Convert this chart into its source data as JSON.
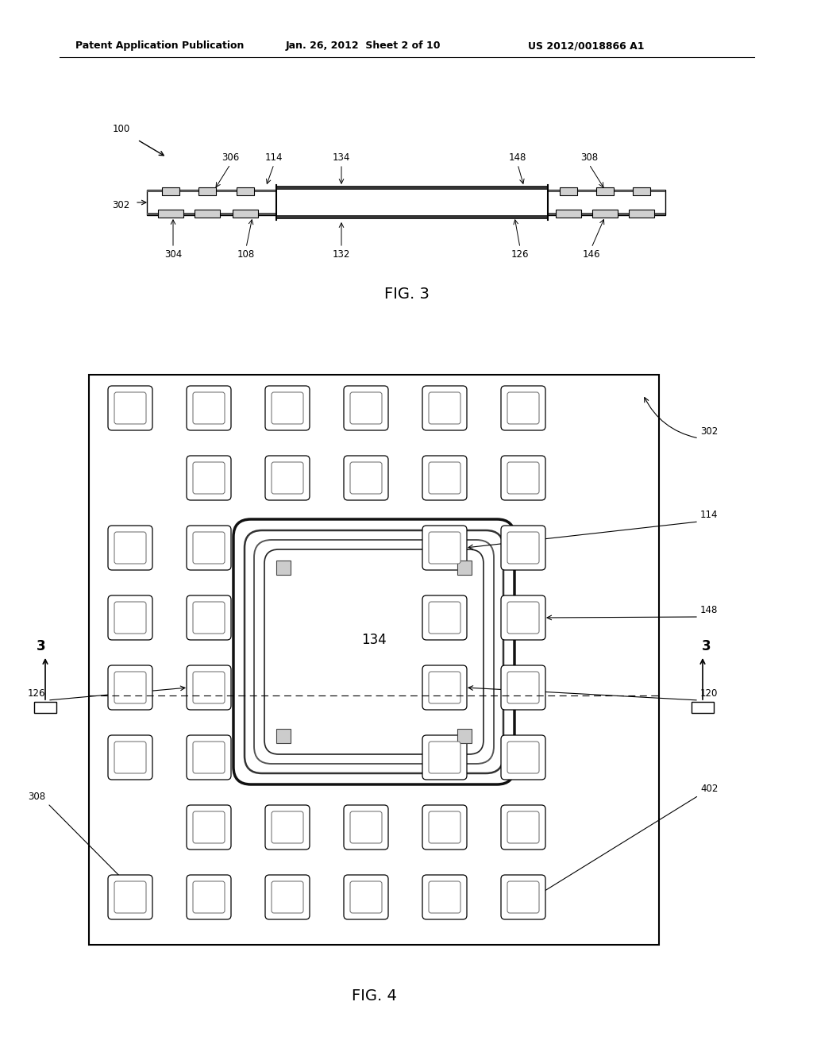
{
  "background_color": "#ffffff",
  "header_left": "Patent Application Publication",
  "header_mid": "Jan. 26, 2012  Sheet 2 of 10",
  "header_right": "US 2012/0018866 A1",
  "fig3_label": "FIG. 3",
  "fig4_label": "FIG. 4",
  "fig3_ref_100": "100",
  "fig3_ref_302": "302",
  "fig3_ref_306": "306",
  "fig3_ref_114": "114",
  "fig3_ref_134": "134",
  "fig3_ref_148": "148",
  "fig3_ref_308": "308",
  "fig3_ref_304": "304",
  "fig3_ref_108": "108",
  "fig3_ref_132": "132",
  "fig3_ref_126": "126",
  "fig3_ref_146": "146",
  "fig4_ref_302": "302",
  "fig4_ref_114": "114",
  "fig4_ref_134": "134",
  "fig4_ref_148": "148",
  "fig4_ref_120": "120",
  "fig4_ref_126": "126",
  "fig4_ref_308": "308",
  "fig4_ref_402": "402",
  "fig4_ref_3left": "3",
  "fig4_ref_3right": "3"
}
